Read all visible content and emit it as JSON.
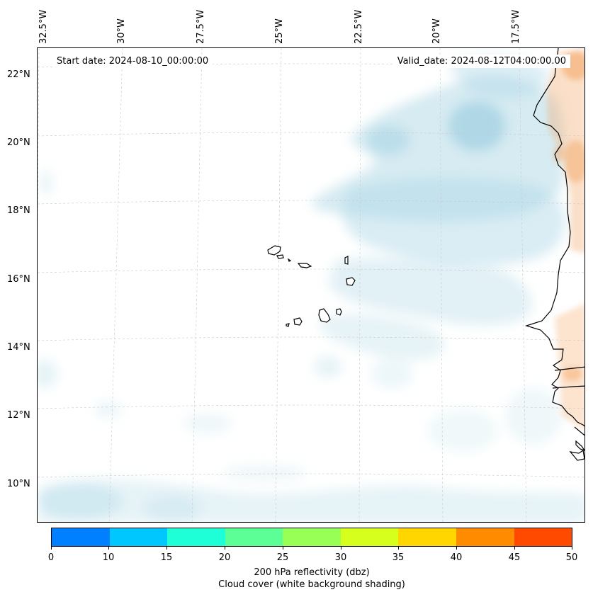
{
  "map": {
    "start_date": "Start date: 2024-08-10_00:00:00",
    "valid_date": "Valid_date: 2024-08-12T04:00:00.00",
    "lon_labels": [
      "32.5°W",
      "30°W",
      "27.5°W",
      "25°W",
      "22.5°W",
      "20°W",
      "17.5°W"
    ],
    "lat_labels": [
      "22°N",
      "20°N",
      "18°N",
      "16°N",
      "14°N",
      "12°N",
      "10°N"
    ],
    "coastline_color": "#000000",
    "cloud_shading_color": "#add8e6",
    "reflectivity_shading_color": "#f4a460"
  },
  "colorbar": {
    "ticks": [
      "0",
      "10",
      "15",
      "20",
      "25",
      "30",
      "35",
      "40",
      "45",
      "50"
    ],
    "colors": [
      "#0080ff",
      "#00c8ff",
      "#1effd8",
      "#5cff96",
      "#98ff56",
      "#d6ff1e",
      "#ffd600",
      "#ff8c00",
      "#ff4a00"
    ],
    "label": "200 hPa reflectivity (dbz)",
    "sublabel": "Cloud cover (white background shading)"
  }
}
